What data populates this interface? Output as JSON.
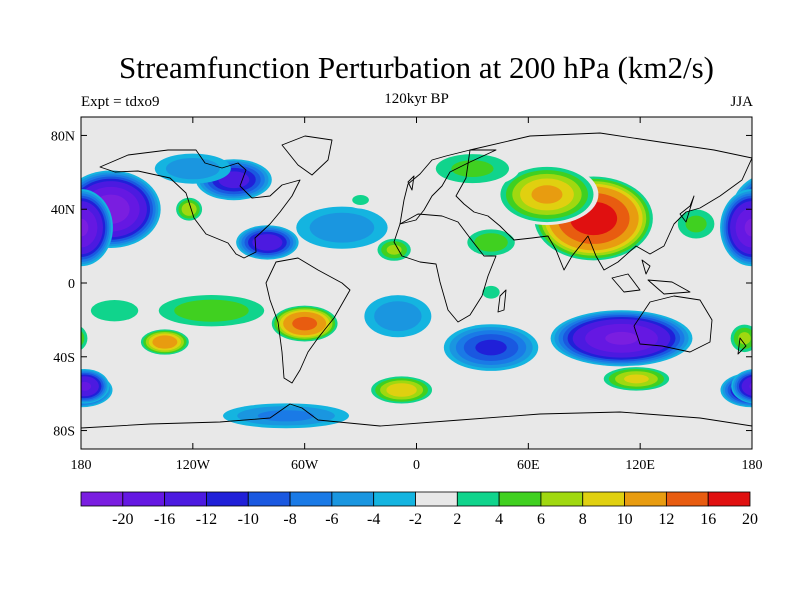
{
  "header": {
    "title": "Streamfunction Perturbation at 200 hPa (km2/s)",
    "subtitle": "120kyr BP",
    "left_label": "Expt = tdxo9",
    "right_label": "JJA"
  },
  "map": {
    "lat_ticks": [
      {
        "lat": 80,
        "label": "80N"
      },
      {
        "lat": 40,
        "label": "40N"
      },
      {
        "lat": 0,
        "label": "0"
      },
      {
        "lat": -40,
        "label": "40S"
      },
      {
        "lat": -80,
        "label": "80S"
      }
    ],
    "lon_ticks": [
      {
        "lon": 180,
        "label": "180"
      },
      {
        "lon": 240,
        "label": "120W"
      },
      {
        "lon": 300,
        "label": "60W"
      },
      {
        "lon": 360,
        "label": "0"
      },
      {
        "lon": 420,
        "label": "60E"
      },
      {
        "lon": 480,
        "label": "120E"
      },
      {
        "lon": 540,
        "label": "180"
      }
    ],
    "lon_range": [
      180,
      540
    ],
    "lat_range": [
      -90,
      90
    ],
    "ocean_color": "#e8e8e8",
    "anomalies": [
      {
        "lon": 455,
        "lat": 35,
        "value": 22,
        "rlon": 35,
        "rlat": 25
      },
      {
        "lon": 430,
        "lat": 48,
        "value": 12,
        "rlon": 30,
        "rlat": 18
      },
      {
        "lon": 400,
        "lat": 22,
        "value": 7,
        "rlon": 18,
        "rlat": 10
      },
      {
        "lon": 348,
        "lat": 18,
        "value": 8,
        "rlon": 12,
        "rlat": 8
      },
      {
        "lon": 390,
        "lat": 62,
        "value": 6,
        "rlon": 30,
        "rlat": 12
      },
      {
        "lon": 510,
        "lat": 32,
        "value": 6,
        "rlon": 15,
        "rlat": 12
      },
      {
        "lon": 196,
        "lat": 40,
        "value": -22,
        "rlon": 28,
        "rlat": 22
      },
      {
        "lon": 540,
        "lat": 30,
        "value": -20,
        "rlon": 18,
        "rlat": 22
      },
      {
        "lon": 262,
        "lat": 56,
        "value": -13,
        "rlon": 22,
        "rlat": 12
      },
      {
        "lon": 280,
        "lat": 22,
        "value": -14,
        "rlon": 18,
        "rlat": 10
      },
      {
        "lon": 240,
        "lat": 62,
        "value": -5,
        "rlon": 25,
        "rlat": 10
      },
      {
        "lon": 320,
        "lat": 30,
        "value": -5,
        "rlon": 30,
        "rlat": 14
      },
      {
        "lon": 300,
        "lat": -22,
        "value": 17,
        "rlon": 20,
        "rlat": 11
      },
      {
        "lon": 225,
        "lat": -32,
        "value": 14,
        "rlon": 15,
        "rlat": 8
      },
      {
        "lon": 250,
        "lat": -15,
        "value": 7,
        "rlon": 40,
        "rlat": 12
      },
      {
        "lon": 198,
        "lat": -15,
        "value": 5,
        "rlon": 22,
        "rlat": 10
      },
      {
        "lon": 470,
        "lat": -30,
        "value": -20,
        "rlon": 40,
        "rlat": 16
      },
      {
        "lon": 400,
        "lat": -35,
        "value": -10,
        "rlon": 28,
        "rlat": 14
      },
      {
        "lon": 350,
        "lat": -18,
        "value": -5,
        "rlon": 22,
        "rlat": 14
      },
      {
        "lon": 540,
        "lat": -58,
        "value": -16,
        "rlon": 18,
        "rlat": 10
      },
      {
        "lon": 182,
        "lat": -56,
        "value": -16,
        "rlon": 14,
        "rlat": 10
      },
      {
        "lon": 352,
        "lat": -58,
        "value": 11,
        "rlon": 20,
        "rlat": 9
      },
      {
        "lon": 478,
        "lat": -52,
        "value": 10,
        "rlon": 22,
        "rlat": 8
      },
      {
        "lon": 290,
        "lat": -72,
        "value": -6,
        "rlon": 40,
        "rlat": 8
      },
      {
        "lon": 536,
        "lat": -30,
        "value": 8,
        "rlon": 10,
        "rlat": 10
      },
      {
        "lon": 400,
        "lat": -5,
        "value": 5,
        "rlon": 8,
        "rlat": 6
      },
      {
        "lon": 330,
        "lat": 45,
        "value": 4,
        "rlon": 10,
        "rlat": 6
      },
      {
        "lon": 238,
        "lat": 40,
        "value": 9,
        "rlon": 9,
        "rlat": 8
      }
    ]
  },
  "colorbar": {
    "levels": [
      "-20",
      "-16",
      "-12",
      "-10",
      "-8",
      "-6",
      "-4",
      "-2",
      "2",
      "4",
      "6",
      "8",
      "10",
      "12",
      "16",
      "20"
    ],
    "thresholds": [
      -20,
      -16,
      -12,
      -10,
      -8,
      -6,
      -4,
      -2,
      2,
      4,
      6,
      8,
      10,
      12,
      16,
      20
    ],
    "colors": [
      "#7a1ee0",
      "#6518e2",
      "#4c1ae0",
      "#2020d8",
      "#1a58e0",
      "#1a7ae6",
      "#1a96e0",
      "#14b4e0",
      "#e8e8e8",
      "#10d48c",
      "#40d020",
      "#a0d810",
      "#e0d010",
      "#e89c10",
      "#e85c10",
      "#e01010"
    ]
  }
}
